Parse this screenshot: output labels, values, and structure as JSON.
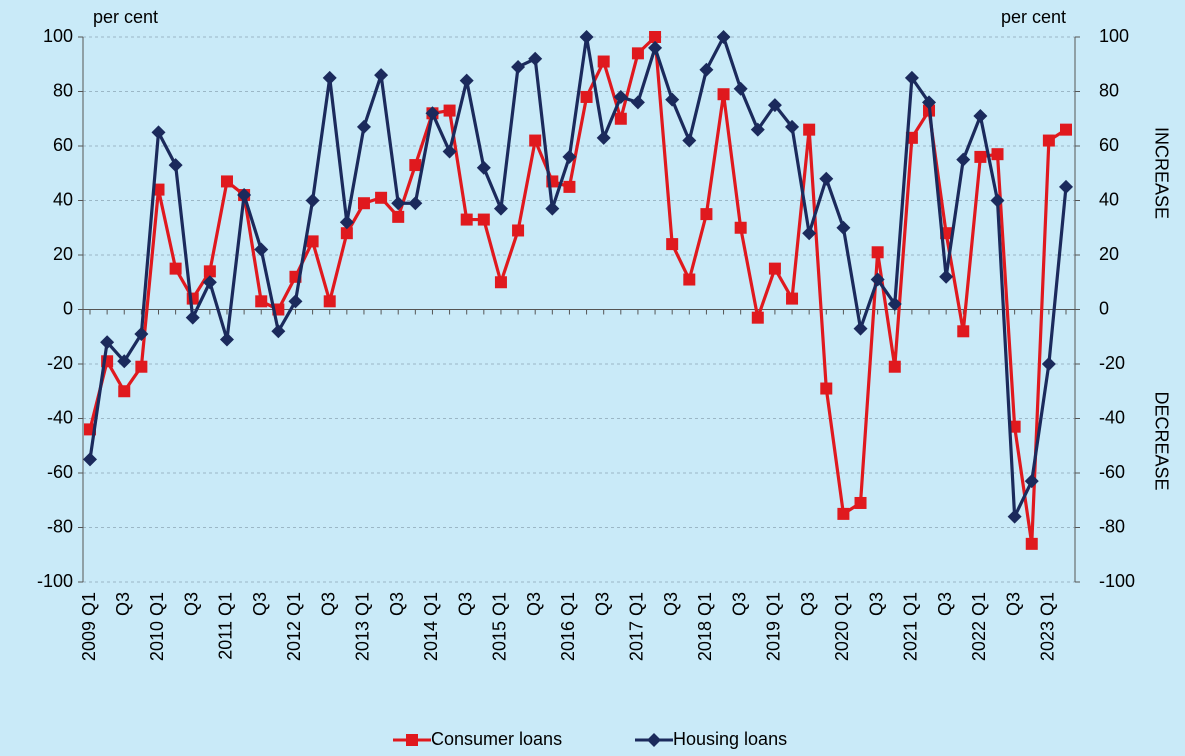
{
  "chart_data": {
    "type": "line",
    "y_label": "per cent",
    "y2_label": "per cent",
    "annotations": [
      "INCREASE",
      "DECREASE"
    ],
    "categories": [
      "2009 Q1",
      null,
      "Q3",
      null,
      "2010 Q1",
      null,
      "Q3",
      null,
      "2011 Q1",
      null,
      "Q3",
      null,
      "2012 Q1",
      null,
      "Q3",
      null,
      "2013 Q1",
      null,
      "Q3",
      null,
      "2014 Q1",
      null,
      "Q3",
      null,
      "2015 Q1",
      null,
      "Q3",
      null,
      "2016 Q1",
      null,
      "Q3",
      null,
      "2017 Q1",
      null,
      "Q3",
      null,
      "2018 Q1",
      null,
      "Q3",
      null,
      "2019 Q1",
      null,
      "Q3",
      null,
      "2020 Q1",
      null,
      "Q3",
      null,
      "2021 Q1",
      null,
      "Q3",
      null,
      "2022 Q1",
      null,
      "Q3",
      null,
      "2023 Q1",
      null
    ],
    "series": [
      {
        "name": "Consumer loans",
        "color": "#e0191e",
        "marker": "square",
        "values": [
          -44,
          -19,
          -30,
          -21,
          44,
          15,
          4,
          14,
          47,
          42,
          3,
          0,
          12,
          25,
          3,
          28,
          39,
          41,
          34,
          53,
          72,
          73,
          33,
          33,
          10,
          29,
          62,
          47,
          45,
          78,
          91,
          70,
          94,
          100,
          24,
          11,
          35,
          79,
          30,
          -3,
          15,
          4,
          66,
          -29,
          -75,
          -71,
          21,
          -21,
          63,
          73,
          28,
          -8,
          56,
          57,
          -43,
          -86,
          62,
          66
        ]
      },
      {
        "name": "Housing loans",
        "color": "#1b2a5c",
        "marker": "diamond",
        "values": [
          -55,
          -12,
          -19,
          -9,
          65,
          53,
          -3,
          10,
          -11,
          42,
          22,
          -8,
          3,
          40,
          85,
          32,
          67,
          86,
          39,
          39,
          72,
          58,
          84,
          52,
          37,
          89,
          92,
          37,
          56,
          100,
          63,
          78,
          76,
          96,
          77,
          62,
          88,
          100,
          81,
          66,
          75,
          67,
          28,
          48,
          30,
          -7,
          11,
          2,
          85,
          76,
          12,
          55,
          71,
          40,
          -76,
          -63,
          -20,
          45
        ]
      }
    ],
    "ylim": [
      -100,
      100
    ],
    "yticks": [
      -100,
      -80,
      -60,
      -40,
      -20,
      0,
      20,
      40,
      60,
      80,
      100
    ],
    "y2lim": [
      -100,
      100
    ],
    "y2ticks": [
      -100,
      -80,
      -60,
      -40,
      -20,
      0,
      20,
      40,
      60,
      80,
      100
    ],
    "grid": true
  }
}
